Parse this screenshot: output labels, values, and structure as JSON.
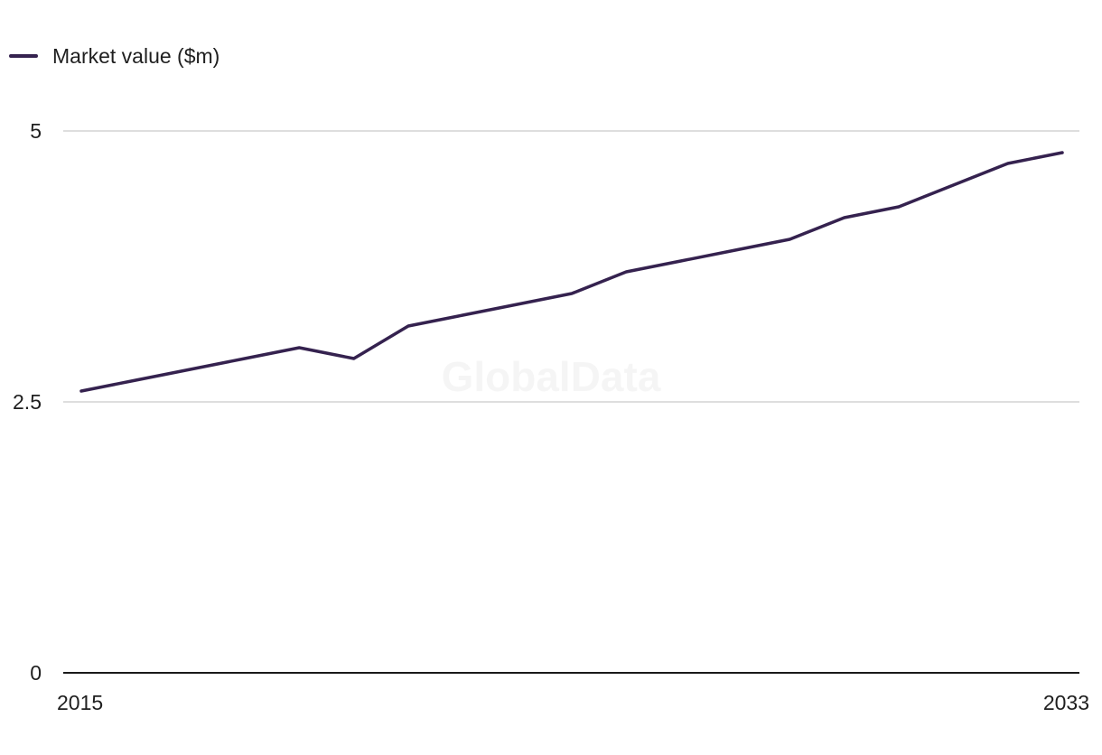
{
  "legend": {
    "label": "Market value ($m)"
  },
  "watermark": "GlobalData",
  "colors": {
    "series": "#35224f",
    "grid": "#d4d4d4",
    "axis": "#1a1a1a"
  },
  "chart_data": {
    "type": "line",
    "title": "",
    "xlabel": "",
    "ylabel": "",
    "x": [
      2015,
      2016,
      2017,
      2018,
      2019,
      2020,
      2021,
      2022,
      2023,
      2024,
      2025,
      2026,
      2027,
      2028,
      2029,
      2030,
      2031,
      2032,
      2033
    ],
    "series": [
      {
        "name": "Market value ($m)",
        "values": [
          2.6,
          2.7,
          2.8,
          2.9,
          3.0,
          2.9,
          3.2,
          3.3,
          3.4,
          3.5,
          3.7,
          3.8,
          3.9,
          4.0,
          4.2,
          4.3,
          4.5,
          4.7,
          4.8
        ]
      }
    ],
    "ylim": [
      0,
      5
    ],
    "yticks": [
      "0",
      "2.5",
      "5"
    ],
    "xticks": [
      "2015",
      "2033"
    ],
    "grid": true,
    "legend_position": "top-left"
  }
}
